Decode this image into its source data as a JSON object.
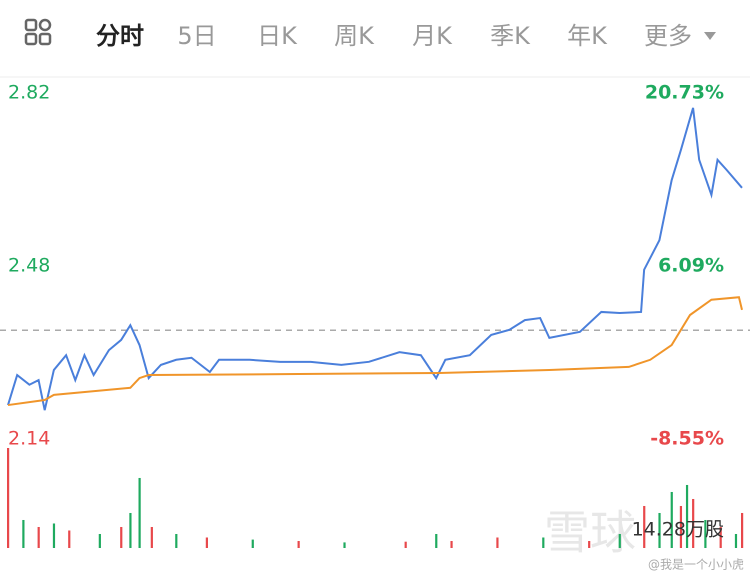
{
  "tabs": [
    "分时",
    "5日",
    "日K",
    "周K",
    "月K",
    "季K",
    "年K",
    "更多"
  ],
  "active_tab": 0,
  "chart_data": {
    "type": "line",
    "ylim": [
      2.14,
      2.82
    ],
    "yticks": [
      2.82,
      2.48,
      2.14
    ],
    "y2lim": [
      -8.55,
      20.73
    ],
    "y2ticks": [
      {
        "value": 20.73,
        "label": "20.73%"
      },
      {
        "value": 6.09,
        "label": "6.09%"
      },
      {
        "value": -8.55,
        "label": "-8.55%"
      }
    ],
    "xlim": [
      0,
      240
    ],
    "reference_line": 2.336,
    "up_color": "#1faa5f",
    "down_color": "#e8484b",
    "series": [
      {
        "color": "#4a7fdb",
        "x": [
          0,
          3,
          7,
          10,
          12,
          15,
          19,
          22,
          25,
          28,
          33,
          37,
          40,
          43,
          46,
          50,
          55,
          60,
          66,
          69,
          79,
          89,
          99,
          109,
          118,
          128,
          135,
          140,
          143,
          151,
          158,
          164,
          169,
          174,
          177,
          187,
          194,
          200,
          207,
          208,
          213,
          217,
          220,
          224,
          226,
          230,
          232,
          235,
          240
        ],
        "values": [
          2.189,
          2.248,
          2.229,
          2.238,
          2.179,
          2.258,
          2.287,
          2.238,
          2.287,
          2.248,
          2.297,
          2.317,
          2.346,
          2.307,
          2.242,
          2.268,
          2.278,
          2.282,
          2.254,
          2.278,
          2.278,
          2.274,
          2.274,
          2.268,
          2.274,
          2.293,
          2.287,
          2.242,
          2.278,
          2.287,
          2.327,
          2.337,
          2.356,
          2.36,
          2.321,
          2.333,
          2.372,
          2.37,
          2.372,
          2.455,
          2.513,
          2.631,
          2.69,
          2.773,
          2.671,
          2.602,
          2.671,
          2.651,
          2.616
        ]
      },
      {
        "color": "#f0952a",
        "x": [
          0,
          12,
          15,
          40,
          43,
          46,
          95,
          141,
          177,
          203,
          210,
          217,
          223,
          230,
          239,
          240
        ],
        "values": [
          2.189,
          2.199,
          2.209,
          2.223,
          2.242,
          2.248,
          2.25,
          2.252,
          2.258,
          2.264,
          2.278,
          2.307,
          2.366,
          2.396,
          2.401,
          2.376
        ]
      }
    ],
    "volume": {
      "ylim": [
        0,
        14.28
      ],
      "yticks": [
        {
          "value": 14.28,
          "label": "14.28万股"
        }
      ],
      "x": [
        0,
        5,
        10,
        15,
        20,
        30,
        37,
        40,
        43,
        47,
        55,
        65,
        80,
        95,
        110,
        130,
        140,
        145,
        160,
        175,
        190,
        200,
        208,
        213,
        217,
        220,
        222,
        224,
        228,
        233,
        238,
        240
      ],
      "values": [
        14.28,
        4,
        3,
        3.5,
        2.5,
        2,
        3,
        5,
        10,
        3,
        2,
        1.5,
        1.2,
        1,
        0.8,
        0.9,
        2,
        1,
        1.5,
        1.5,
        1,
        2,
        6,
        5,
        8,
        6,
        9,
        7,
        4,
        3,
        2,
        5
      ],
      "colors": [
        "#e8484b",
        "#1faa5f",
        "#e8484b",
        "#1faa5f",
        "#e8484b",
        "#1faa5f",
        "#e8484b",
        "#1faa5f",
        "#1faa5f",
        "#e8484b",
        "#1faa5f",
        "#e8484b",
        "#1faa5f",
        "#e8484b",
        "#1faa5f",
        "#e8484b",
        "#1faa5f",
        "#e8484b",
        "#e8484b",
        "#1faa5f",
        "#e8484b",
        "#1faa5f",
        "#e8484b",
        "#1faa5f",
        "#1faa5f",
        "#e8484b",
        "#1faa5f",
        "#e8484b",
        "#1faa5f",
        "#e8484b",
        "#1faa5f",
        "#e8484b"
      ]
    }
  },
  "watermark": "@我是一个小小虎",
  "logo": "雪球"
}
